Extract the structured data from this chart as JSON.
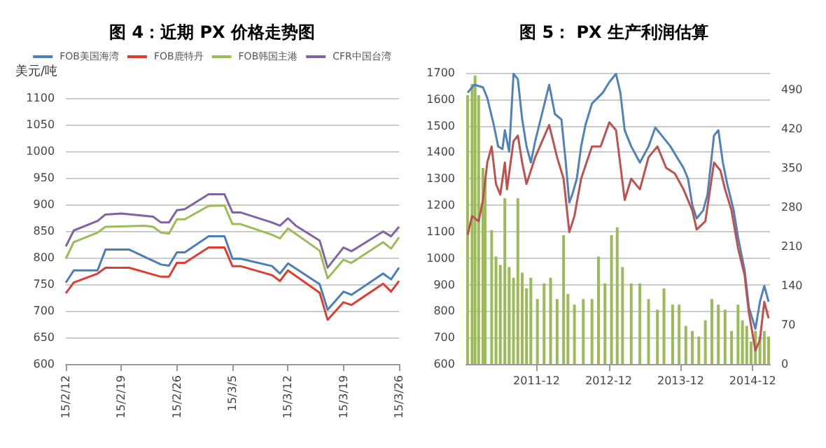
{
  "chart_data": [
    {
      "type": "line",
      "title": "图 4：近期 PX 价格走势图",
      "ylabel": "美元/吨",
      "xlim": [
        "--02-12",
        "--03-26"
      ],
      "ylim": [
        600,
        1100
      ],
      "yticks": [
        600,
        650,
        700,
        750,
        800,
        850,
        900,
        950,
        1000,
        1050,
        1100
      ],
      "xticks": [
        {
          "value": "--02-12",
          "label": "15/2/12"
        },
        {
          "value": "--02-19",
          "label": "15/2/19"
        },
        {
          "value": "--02-26",
          "label": "15/2/26"
        },
        {
          "value": "--03-05",
          "label": "15/3/5"
        },
        {
          "value": "--03-12",
          "label": "15/3/12"
        },
        {
          "value": "--03-19",
          "label": "15/3/19"
        },
        {
          "value": "--03-26",
          "label": "15/3/26"
        }
      ],
      "grid": "y",
      "legend": "top",
      "marker": "none",
      "line_style": "solid",
      "series": [
        {
          "name": "FOB美国海湾",
          "color": "#4a7ebb",
          "x": [
            "--02-12",
            "--02-13",
            "--02-16",
            "--02-17",
            "--02-20",
            "--02-24",
            "--02-25",
            "--02-26",
            "--02-27",
            "--03-02",
            "--03-04",
            "--03-05",
            "--03-06",
            "--03-10",
            "--03-11",
            "--03-12",
            "--03-16",
            "--03-17",
            "--03-19",
            "--03-20",
            "--03-24",
            "--03-25",
            "--03-26"
          ],
          "values": [
            753,
            776,
            776,
            815,
            815,
            787,
            785,
            810,
            810,
            840,
            840,
            798,
            798,
            784,
            770,
            789,
            750,
            702,
            736,
            730,
            770,
            759,
            781
          ]
        },
        {
          "name": "FOB鹿特丹",
          "color": "#e03c31",
          "x": [
            "--02-12",
            "--02-13",
            "--02-16",
            "--02-17",
            "--02-20",
            "--02-24",
            "--02-25",
            "--02-26",
            "--02-27",
            "--03-02",
            "--03-04",
            "--03-05",
            "--03-06",
            "--03-10",
            "--03-11",
            "--03-12",
            "--03-16",
            "--03-17",
            "--03-19",
            "--03-20",
            "--03-24",
            "--03-25",
            "--03-26"
          ],
          "values": [
            733,
            753,
            770,
            781,
            781,
            764,
            764,
            790,
            790,
            819,
            819,
            784,
            784,
            767,
            756,
            776,
            734,
            683,
            716,
            711,
            751,
            736,
            756
          ]
        },
        {
          "name": "FOB韩国主港",
          "color": "#9bbb59",
          "x": [
            "--02-12",
            "--02-13",
            "--02-16",
            "--02-17",
            "--02-22",
            "--02-23",
            "--02-24",
            "--02-25",
            "--02-26",
            "--02-27",
            "--03-02",
            "--03-04",
            "--03-05",
            "--03-06",
            "--03-10",
            "--03-11",
            "--03-12",
            "--03-16",
            "--03-17",
            "--03-19",
            "--03-20",
            "--03-24",
            "--03-25",
            "--03-26"
          ],
          "values": [
            798,
            829,
            847,
            858,
            860,
            858,
            847,
            845,
            872,
            872,
            897,
            898,
            863,
            863,
            843,
            836,
            855,
            813,
            761,
            796,
            790,
            829,
            817,
            838
          ]
        },
        {
          "name": "CFR中国台湾",
          "color": "#8064a2",
          "x": [
            "--02-12",
            "--02-13",
            "--02-16",
            "--02-17",
            "--02-19",
            "--02-23",
            "--02-24",
            "--02-25",
            "--02-26",
            "--02-27",
            "--03-02",
            "--03-04",
            "--03-05",
            "--03-06",
            "--03-10",
            "--03-11",
            "--03-12",
            "--03-13",
            "--03-16",
            "--03-17",
            "--03-19",
            "--03-20",
            "--03-24",
            "--03-25",
            "--03-26"
          ],
          "values": [
            821,
            851,
            869,
            881,
            883,
            877,
            866,
            866,
            889,
            891,
            919,
            919,
            885,
            885,
            866,
            860,
            874,
            860,
            832,
            781,
            819,
            812,
            849,
            840,
            858
          ]
        }
      ]
    },
    {
      "type": "line",
      "title": "图 5： PX 生产利润估算",
      "xlim": [
        "2010-12-09",
        "2015-02-27"
      ],
      "ylim": [
        600,
        1700
      ],
      "yticks": [
        600,
        700,
        800,
        900,
        1000,
        1100,
        1200,
        1300,
        1400,
        1500,
        1600,
        1700
      ],
      "y2lim": [
        0,
        520
      ],
      "y2ticks": [
        0,
        70,
        140,
        210,
        280,
        350,
        420,
        490
      ],
      "xticks": [
        {
          "value": "2011-12-01",
          "label": "2011-12"
        },
        {
          "value": "2012-12-01",
          "label": "2012-12"
        },
        {
          "value": "2013-12-01",
          "label": "2013-12"
        },
        {
          "value": "2014-12-01",
          "label": "2014-12"
        }
      ],
      "grid": "y",
      "marker": "none",
      "line_style": "solid",
      "series": [
        {
          "type": "bar",
          "axis": "y2",
          "color": "#9bbb59",
          "x": [
            "2010-12-16",
            "2011-01-08",
            "2011-01-23",
            "2011-02-10",
            "2011-03-04",
            "2011-03-15",
            "2011-04-17",
            "2011-05-09",
            "2011-05-31",
            "2011-06-23",
            "2011-07-15",
            "2011-08-06",
            "2011-08-28",
            "2011-09-19",
            "2011-10-11",
            "2011-11-02",
            "2011-12-05",
            "2012-01-08",
            "2012-02-10",
            "2012-03-14",
            "2012-04-16",
            "2012-05-08",
            "2012-06-10",
            "2012-07-25",
            "2012-09-07",
            "2012-10-10",
            "2012-11-12",
            "2012-12-15",
            "2013-01-13",
            "2013-02-09",
            "2013-03-25",
            "2013-05-08",
            "2013-06-21",
            "2013-08-05",
            "2013-09-07",
            "2013-10-21",
            "2013-11-23",
            "2013-12-27",
            "2014-01-29",
            "2014-03-03",
            "2014-04-05",
            "2014-05-08",
            "2014-06-10",
            "2014-07-14",
            "2014-08-16",
            "2014-09-18",
            "2014-10-10",
            "2014-11-01",
            "2014-11-23",
            "2014-12-15",
            "2015-01-07",
            "2015-01-29",
            "2015-02-20"
          ],
          "values": [
            480,
            500,
            515,
            480,
            350,
            334,
            239,
            192,
            177,
            296,
            173,
            154,
            296,
            163,
            135,
            154,
            116,
            144,
            154,
            116,
            230,
            125,
            106,
            116,
            116,
            192,
            144,
            230,
            244,
            173,
            144,
            144,
            116,
            97,
            135,
            106,
            106,
            68,
            59,
            49,
            78,
            116,
            106,
            97,
            59,
            106,
            78,
            68,
            40,
            59,
            49,
            59,
            49
          ]
        },
        {
          "color": "#4f81bd",
          "x": [
            "2010-12-16",
            "2011-01-19",
            "2011-03-04",
            "2011-03-26",
            "2011-04-28",
            "2011-05-20",
            "2011-06-11",
            "2011-06-23",
            "2011-07-15",
            "2011-08-06",
            "2011-08-28",
            "2011-09-19",
            "2011-10-11",
            "2011-11-02",
            "2011-11-24",
            "2011-12-28",
            "2012-02-03",
            "2012-03-03",
            "2012-04-05",
            "2012-04-27",
            "2012-05-15",
            "2012-05-30",
            "2012-06-22",
            "2012-07-14",
            "2012-08-05",
            "2012-09-07",
            "2012-11-01",
            "2012-12-04",
            "2013-01-07",
            "2013-01-29",
            "2013-02-20",
            "2013-03-25",
            "2013-05-08",
            "2013-06-21",
            "2013-07-25",
            "2013-08-27",
            "2013-10-10",
            "2013-11-12",
            "2013-12-15",
            "2014-01-07",
            "2014-01-29",
            "2014-02-20",
            "2014-03-25",
            "2014-04-16",
            "2014-05-19",
            "2014-06-10",
            "2014-07-03",
            "2014-07-25",
            "2014-08-27",
            "2014-09-18",
            "2014-10-21",
            "2014-11-12",
            "2014-12-15",
            "2015-01-07",
            "2015-01-29",
            "2015-02-20"
          ],
          "values": [
            1625,
            1655,
            1645,
            1605,
            1503,
            1422,
            1412,
            1483,
            1402,
            1696,
            1676,
            1524,
            1422,
            1361,
            1442,
            1544,
            1655,
            1544,
            1524,
            1361,
            1210,
            1240,
            1300,
            1422,
            1503,
            1584,
            1625,
            1665,
            1696,
            1625,
            1483,
            1422,
            1361,
            1422,
            1493,
            1463,
            1422,
            1381,
            1341,
            1300,
            1200,
            1150,
            1180,
            1240,
            1463,
            1483,
            1361,
            1280,
            1180,
            1078,
            956,
            814,
            733,
            835,
            895,
            835
          ]
        },
        {
          "color": "#c0504d",
          "x": [
            "2010-12-16",
            "2011-01-08",
            "2011-02-10",
            "2011-03-04",
            "2011-03-26",
            "2011-04-17",
            "2011-05-09",
            "2011-05-31",
            "2011-06-23",
            "2011-07-04",
            "2011-08-06",
            "2011-08-28",
            "2011-09-19",
            "2011-10-11",
            "2011-11-24",
            "2012-02-03",
            "2012-03-14",
            "2012-04-16",
            "2012-05-15",
            "2012-06-10",
            "2012-07-14",
            "2012-09-07",
            "2012-10-21",
            "2012-12-04",
            "2013-01-07",
            "2013-02-20",
            "2013-03-25",
            "2013-05-08",
            "2013-06-21",
            "2013-08-05",
            "2013-09-18",
            "2013-11-01",
            "2013-12-15",
            "2014-01-29",
            "2014-02-20",
            "2014-04-05",
            "2014-05-19",
            "2014-06-21",
            "2014-07-14",
            "2014-08-16",
            "2014-09-18",
            "2014-10-21",
            "2014-11-12",
            "2014-12-15",
            "2015-01-07",
            "2015-01-29",
            "2015-02-20"
          ],
          "values": [
            1088,
            1159,
            1139,
            1220,
            1361,
            1422,
            1280,
            1240,
            1361,
            1260,
            1442,
            1463,
            1361,
            1280,
            1381,
            1503,
            1381,
            1300,
            1098,
            1159,
            1300,
            1422,
            1422,
            1513,
            1483,
            1220,
            1300,
            1260,
            1381,
            1422,
            1341,
            1320,
            1260,
            1180,
            1108,
            1139,
            1361,
            1330,
            1260,
            1180,
            1037,
            936,
            793,
            651,
            692,
            835,
            773
          ]
        }
      ]
    }
  ]
}
